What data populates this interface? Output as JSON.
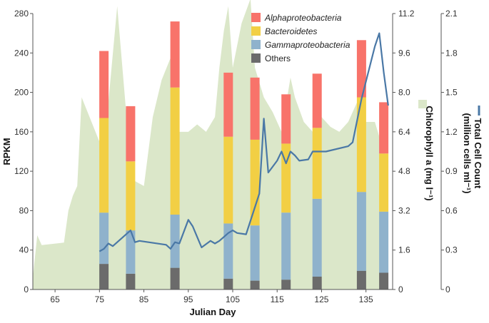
{
  "chart_data": {
    "type": "bar",
    "stacked": true,
    "xlabel": "Julian Day",
    "xlim": [
      60,
      141
    ],
    "x_ticks": [
      "65",
      "75",
      "85",
      "95",
      "105",
      "115",
      "125",
      "135"
    ],
    "x_tick_values": [
      65,
      75,
      85,
      95,
      105,
      115,
      125,
      135
    ],
    "left_axis": {
      "label": "RPKM",
      "range": [
        0,
        280
      ],
      "ticks": [
        "0",
        "40",
        "80",
        "120",
        "160",
        "200",
        "240",
        "280"
      ],
      "tick_values": [
        0,
        40,
        80,
        120,
        160,
        200,
        240,
        280
      ]
    },
    "right_axis_chl": {
      "label": "Chlorophyll a (mg l⁻¹)",
      "range": [
        0,
        11.2
      ],
      "ticks": [
        "0",
        "1.6",
        "3.2",
        "4.8",
        "6.4",
        "8.0",
        "9.6",
        "11.2"
      ],
      "tick_values": [
        0,
        1.6,
        3.2,
        4.8,
        6.4,
        8.0,
        9.6,
        11.2
      ]
    },
    "right_axis_cells": {
      "label": "Total Cell Count (million cells ml⁻¹)",
      "label_line1": "Total Cell Count",
      "label_line2": "(million cells ml⁻¹)",
      "range": [
        0,
        2.1
      ],
      "ticks": [
        "0",
        "0.3",
        "0.6",
        "0.9",
        "1.2",
        "1.5",
        "1.8",
        "2.1"
      ],
      "tick_values": [
        0,
        0.3,
        0.6,
        0.9,
        1.2,
        1.5,
        1.8,
        2.1
      ]
    },
    "bar_days": [
      76,
      82,
      92,
      104,
      110,
      117,
      124,
      134,
      139
    ],
    "series": [
      {
        "name": "Others",
        "italic": false,
        "color": "#6b6b6b",
        "values": [
          26,
          16,
          22,
          11,
          9,
          10,
          13,
          19,
          17
        ]
      },
      {
        "name": "Gammaproteobacteria",
        "italic": true,
        "color": "#8fb2cc",
        "values": [
          52,
          44,
          54,
          56,
          56,
          68,
          79,
          80,
          62
        ]
      },
      {
        "name": "Bacteroidetes",
        "italic": true,
        "color": "#f2cf44",
        "values": [
          96,
          70,
          129,
          88,
          87,
          70,
          72,
          96,
          59
        ]
      },
      {
        "name": "Alphaproteobacteria",
        "italic": true,
        "color": "#f8736a",
        "values": [
          68,
          56,
          67,
          65,
          63,
          50,
          55,
          58,
          52
        ]
      }
    ],
    "chlorophyll": {
      "name": "Chlorophyll a",
      "color": "#dbe7c9",
      "x": [
        60,
        61,
        62,
        67,
        68,
        69,
        70,
        71,
        75,
        77,
        79,
        81,
        82,
        83,
        85,
        87,
        89,
        91,
        92,
        93,
        95,
        97,
        99,
        101,
        102,
        103,
        104,
        105,
        107,
        109,
        110,
        111,
        112,
        114,
        116,
        118,
        119,
        121,
        123,
        125,
        127,
        129,
        131,
        133,
        135,
        137,
        139,
        140
      ],
      "values": [
        0.5,
        2.2,
        1.8,
        1.9,
        3.2,
        3.8,
        4.2,
        7.8,
        6.0,
        7.6,
        11.5,
        7.2,
        5.8,
        4.4,
        4.2,
        7.0,
        8.5,
        9.4,
        8.8,
        6.4,
        6.4,
        6.7,
        6.4,
        7.0,
        9.0,
        10.5,
        11.5,
        9.0,
        10.8,
        11.8,
        9.0,
        8.4,
        7.8,
        7.2,
        6.4,
        8.6,
        7.8,
        6.8,
        6.4,
        7.0,
        6.6,
        6.4,
        6.8,
        7.6,
        6.8,
        6.8,
        5.6,
        5.2
      ]
    },
    "cell_count": {
      "name": "Total Cell Count",
      "color": "#4a78a6",
      "x": [
        75,
        76,
        77,
        78,
        81,
        82,
        83,
        84,
        90,
        91,
        92,
        93,
        95,
        96,
        97,
        98,
        100,
        101,
        102,
        103,
        104,
        105,
        106,
        108,
        111,
        112,
        113,
        115,
        116,
        117,
        118,
        119,
        120,
        122,
        123,
        126,
        131,
        132,
        134,
        137,
        138,
        139,
        140
      ],
      "values": [
        0.29,
        0.31,
        0.35,
        0.33,
        0.42,
        0.45,
        0.36,
        0.37,
        0.34,
        0.31,
        0.36,
        0.35,
        0.53,
        0.48,
        0.4,
        0.32,
        0.37,
        0.35,
        0.37,
        0.4,
        0.43,
        0.45,
        0.43,
        0.42,
        0.73,
        1.3,
        0.89,
        0.98,
        1.05,
        0.96,
        1.05,
        1.02,
        0.98,
        0.99,
        1.05,
        1.05,
        1.09,
        1.12,
        1.45,
        1.85,
        1.95,
        1.65,
        1.4
      ]
    },
    "legend": {
      "position": "top-right",
      "entries": [
        "Alphaproteobacteria",
        "Bacteroidetes",
        "Gammaproteobacteria",
        "Others"
      ]
    }
  }
}
